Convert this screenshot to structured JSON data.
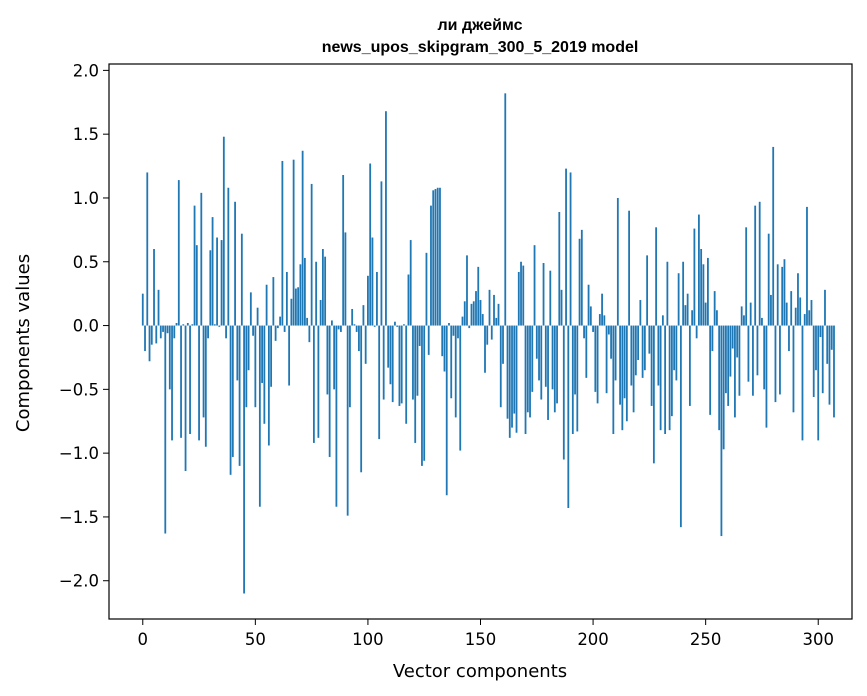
{
  "chart_data": {
    "type": "bar",
    "title": "ли джеймс",
    "subtitle": "news_upos_skipgram_300_5_2019 model",
    "xlabel": "Vector components",
    "ylabel": "Components values",
    "xlim": [
      -15,
      315
    ],
    "ylim": [
      -2.3,
      2.05
    ],
    "xticks": [
      0,
      50,
      100,
      150,
      200,
      250,
      300
    ],
    "xtick_labels": [
      "0",
      "50",
      "100",
      "150",
      "200",
      "250",
      "300"
    ],
    "yticks": [
      -2.0,
      -1.5,
      -1.0,
      -0.5,
      0.0,
      0.5,
      1.0,
      1.5,
      2.0
    ],
    "ytick_labels": [
      "−2.0",
      "−1.5",
      "−1.0",
      "−0.5",
      "0.0",
      "0.5",
      "1.0",
      "1.5",
      "2.0"
    ],
    "bar_color": "#1f77b4",
    "grid": false,
    "values": [
      0.25,
      -0.2,
      1.2,
      -0.28,
      -0.15,
      0.6,
      -0.14,
      0.28,
      -0.1,
      -0.05,
      -1.63,
      -0.06,
      -0.5,
      -0.9,
      -0.1,
      0.02,
      1.14,
      -0.88,
      0.01,
      -1.14,
      0.02,
      -0.85,
      0.01,
      0.94,
      0.63,
      -0.9,
      1.04,
      -0.72,
      -0.95,
      -0.1,
      0.59,
      0.85,
      0.01,
      0.69,
      -0.01,
      0.67,
      1.48,
      -0.1,
      1.08,
      -1.17,
      -1.03,
      0.97,
      -0.43,
      -1.1,
      0.72,
      -2.1,
      -0.64,
      -0.35,
      0.26,
      -0.08,
      -0.64,
      0.14,
      -1.42,
      -0.45,
      -0.77,
      0.32,
      -0.94,
      -0.48,
      0.38,
      -0.12,
      -0.02,
      0.07,
      1.29,
      -0.05,
      0.42,
      -0.47,
      0.21,
      1.3,
      0.29,
      0.3,
      0.48,
      1.37,
      0.53,
      0.06,
      -0.13,
      1.11,
      -0.92,
      0.5,
      -0.88,
      0.2,
      0.6,
      0.54,
      -0.54,
      -1.03,
      0.04,
      -0.5,
      -1.42,
      -0.03,
      -0.05,
      1.18,
      0.73,
      -1.49,
      -0.64,
      0.13,
      0.01,
      -0.05,
      -0.2,
      -1.15,
      0.16,
      -0.3,
      0.39,
      1.27,
      0.69,
      -0.01,
      0.42,
      -0.89,
      1.13,
      -0.58,
      1.68,
      -0.33,
      -0.46,
      -0.6,
      0.03,
      -0.01,
      -0.63,
      -0.61,
      0.01,
      -0.77,
      0.4,
      0.67,
      -0.58,
      -0.92,
      -0.55,
      -0.16,
      -1.1,
      -1.06,
      0.57,
      -0.23,
      0.94,
      1.06,
      1.07,
      1.08,
      1.08,
      -0.24,
      -0.36,
      -1.33,
      0.02,
      -0.57,
      -0.08,
      -0.72,
      -0.1,
      -0.98,
      0.07,
      0.19,
      0.55,
      -0.02,
      0.17,
      0.19,
      0.27,
      0.46,
      0.2,
      0.09,
      -0.37,
      -0.15,
      0.28,
      -0.11,
      0.24,
      0.06,
      0.17,
      -0.64,
      -0.3,
      1.82,
      -0.73,
      -0.88,
      -0.8,
      -0.69,
      -0.84,
      0.42,
      0.5,
      0.47,
      -0.85,
      -0.68,
      -0.72,
      -0.52,
      0.63,
      -0.26,
      -0.43,
      -0.58,
      0.49,
      -0.48,
      -0.74,
      0.43,
      -0.5,
      -0.68,
      -0.61,
      0.89,
      0.28,
      -1.05,
      1.23,
      -1.43,
      1.2,
      -0.85,
      -0.54,
      -0.83,
      0.68,
      0.75,
      -0.1,
      -0.41,
      0.32,
      0.15,
      -0.05,
      -0.52,
      -0.61,
      0.09,
      0.25,
      0.08,
      -0.53,
      -0.07,
      -0.26,
      -0.85,
      -0.43,
      1.0,
      -0.62,
      -0.82,
      -0.57,
      -0.75,
      0.9,
      -0.47,
      -0.68,
      -0.39,
      -0.27,
      0.2,
      -0.41,
      -0.35,
      0.55,
      -0.22,
      -0.63,
      -1.08,
      0.77,
      -0.47,
      -0.82,
      0.08,
      -0.85,
      0.5,
      -0.82,
      -0.71,
      -0.35,
      -0.43,
      0.41,
      -1.58,
      0.5,
      0.16,
      0.25,
      -0.63,
      0.12,
      0.76,
      -0.1,
      0.87,
      0.6,
      0.48,
      0.18,
      0.53,
      -0.7,
      -0.2,
      0.27,
      0.12,
      -0.82,
      -1.65,
      -0.97,
      -0.53,
      -0.63,
      -0.4,
      -0.18,
      -0.72,
      -0.25,
      -0.55,
      0.15,
      0.08,
      0.77,
      -0.44,
      0.18,
      -0.55,
      0.94,
      -0.39,
      0.97,
      0.06,
      -0.5,
      -0.8,
      0.72,
      0.24,
      1.4,
      -0.6,
      0.48,
      -0.54,
      0.46,
      0.52,
      0.18,
      -0.2,
      0.27,
      -0.68,
      0.14,
      0.41,
      0.22,
      -0.9,
      0.09,
      0.93,
      0.12,
      0.2,
      -0.56,
      -0.35,
      -0.9,
      -0.09,
      -0.53,
      0.28,
      -0.3,
      -0.62,
      -0.19,
      -0.72
    ]
  }
}
